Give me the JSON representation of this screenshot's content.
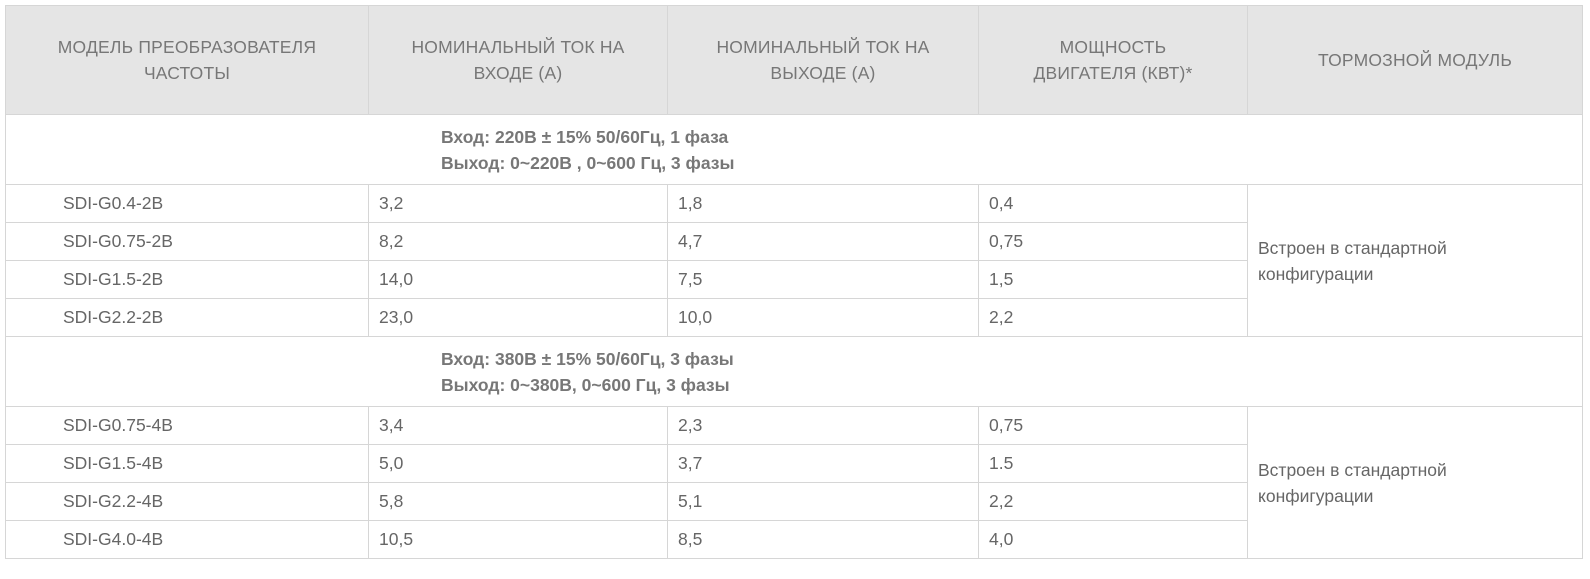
{
  "headers": [
    "МОДЕЛЬ ПРЕОБРАЗОВАТЕЛЯ ЧАСТОТЫ",
    "НОМИНАЛЬНЫЙ ТОК НА ВХОДЕ (А)",
    "НОМИНАЛЬНЫЙ ТОК НА ВЫХОДЕ (А)",
    "МОЩНОСТЬ ДВИГАТЕЛЯ (КВТ)*",
    "ТОРМОЗНОЙ МОДУЛЬ"
  ],
  "groups": [
    {
      "input": "Вход:  220В ± 15% 50/60Гц, 1 фаза",
      "output": "Выход: 0~220В , 0~600 Гц, 3 фазы",
      "brake": "Встроен в стандартной конфигурации",
      "rows": [
        [
          "SDI-G0.4-2B",
          "3,2",
          "1,8",
          "0,4"
        ],
        [
          "SDI-G0.75-2B",
          "8,2",
          "4,7",
          "0,75"
        ],
        [
          "SDI-G1.5-2B",
          "14,0",
          "7,5",
          "1,5"
        ],
        [
          "SDI-G2.2-2B",
          "23,0",
          "10,0",
          "2,2"
        ]
      ]
    },
    {
      "input": "Вход: 380В ± 15% 50/60Гц, 3 фазы",
      "output": "Выход: 0~380В, 0~600 Гц, 3 фазы",
      "brake": "Встроен в стандартной конфигурации",
      "rows": [
        [
          "SDI-G0.75-4B",
          "3,4",
          "2,3",
          "0,75"
        ],
        [
          "SDI-G1.5-4B",
          "5,0",
          "3,7",
          "1.5"
        ],
        [
          "SDI-G2.2-4B",
          "5,8",
          "5,1",
          "2,2"
        ],
        [
          "SDI-G4.0-4B",
          "10,5",
          "8,5",
          "4,0"
        ]
      ]
    }
  ]
}
